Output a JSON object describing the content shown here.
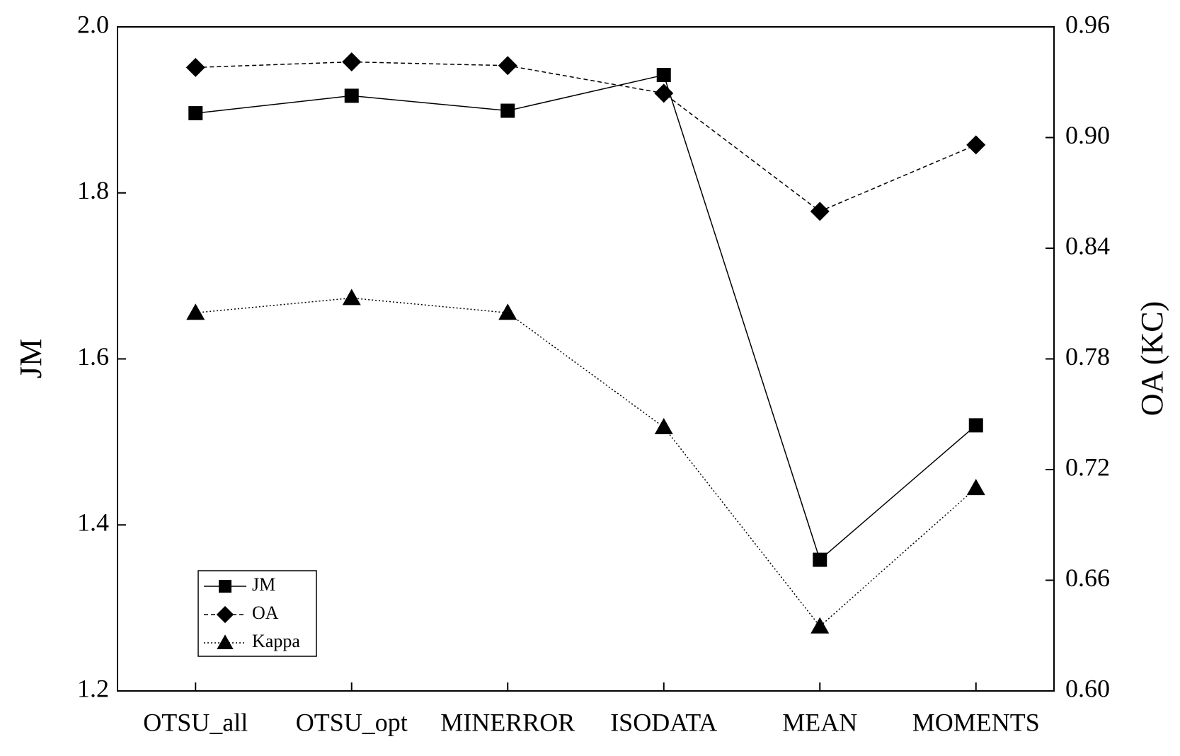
{
  "chart_data": {
    "type": "line",
    "categories": [
      "OTSU_all",
      "OTSU_opt",
      "MINERROR",
      "ISODATA",
      "MEAN",
      "MOMENTS"
    ],
    "y_label": "JM",
    "y2_label": "OA (KC)",
    "ylim": [
      1.2,
      2.0
    ],
    "yticks": [
      1.2,
      1.4,
      1.6,
      1.8,
      {
        "value": 2.0,
        "label": "2.0"
      }
    ],
    "y2lim": [
      0.6,
      0.96
    ],
    "y2ticks": [
      {
        "value": 0.6,
        "label": "0.60"
      },
      0.66,
      0.72,
      0.78,
      0.84,
      {
        "value": 0.9,
        "label": "0.90"
      },
      0.96
    ],
    "legend": "lower left",
    "series": [
      {
        "name": "JM",
        "color": "#000000",
        "marker": "square",
        "dash": "solid",
        "values": [
          1.896,
          1.917,
          1.899,
          1.942,
          1.358,
          1.52
        ]
      },
      {
        "name": "OA",
        "color": "#000000",
        "marker": "diamond",
        "dash": "dashed",
        "axis": "y2",
        "values": [
          0.938,
          0.941,
          0.939,
          0.924,
          0.86,
          0.896
        ]
      },
      {
        "name": "Kappa",
        "color": "#000000",
        "marker": "triangle",
        "dash": "dotted",
        "axis": "y2",
        "values": [
          0.805,
          0.813,
          0.805,
          0.743,
          0.635,
          0.71
        ]
      }
    ]
  }
}
